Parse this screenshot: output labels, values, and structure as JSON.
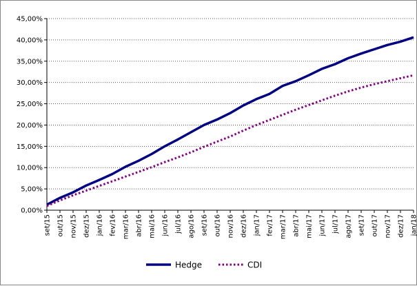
{
  "chart_data": {
    "type": "line",
    "title": "",
    "xlabel": "",
    "ylabel": "",
    "categories": [
      "set/15",
      "out/15",
      "nov/15",
      "dez/15",
      "jan/16",
      "fev/16",
      "mar/16",
      "abr/16",
      "mai/16",
      "jun/16",
      "jul/16",
      "ago/16",
      "set/16",
      "out/16",
      "nov/16",
      "dez/16",
      "jan/17",
      "fev/17",
      "mar/17",
      "abr/17",
      "mai/17",
      "jun/17",
      "jul/17",
      "ago/17",
      "set/17",
      "out/17",
      "nov/17",
      "dez/17",
      "jan/18"
    ],
    "y_ticks": [
      "0,00%",
      "5,00%",
      "10,00%",
      "15,00%",
      "20,00%",
      "25,00%",
      "30,00%",
      "35,00%",
      "40,00%",
      "45,00%"
    ],
    "ylim": [
      0,
      45
    ],
    "grid": "horizontal-dotted",
    "legend_position": "bottom",
    "series": [
      {
        "name": "Hedge",
        "color": "#000080",
        "style": "solid",
        "values": [
          1.3,
          2.9,
          4.2,
          5.8,
          7.1,
          8.5,
          10.2,
          11.6,
          13.2,
          15.0,
          16.6,
          18.3,
          20.0,
          21.3,
          22.8,
          24.6,
          26.1,
          27.3,
          29.2,
          30.3,
          31.7,
          33.2,
          34.3,
          35.7,
          36.8,
          37.8,
          38.8,
          39.6,
          40.6
        ]
      },
      {
        "name": "CDI",
        "color": "#800080",
        "style": "dotted",
        "values": [
          1.0,
          2.3,
          3.5,
          4.6,
          5.7,
          6.8,
          7.9,
          9.0,
          10.1,
          11.3,
          12.4,
          13.6,
          14.9,
          16.1,
          17.3,
          18.7,
          20.0,
          21.2,
          22.4,
          23.6,
          24.7,
          25.8,
          26.9,
          27.9,
          28.8,
          29.6,
          30.3,
          31.0,
          31.7
        ]
      }
    ]
  }
}
